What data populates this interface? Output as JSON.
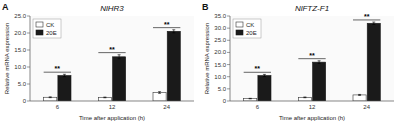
{
  "chart_data": [
    {
      "type": "bar",
      "label": "A",
      "title": "NlHR3",
      "xlabel": "Time after application (h)",
      "ylabel": "Relative mRNA expression",
      "categories": [
        "6",
        "12",
        "24"
      ],
      "series": [
        {
          "name": "CK",
          "color": "white",
          "values": [
            1.1,
            1.05,
            2.5
          ],
          "errors": [
            0.12,
            0.1,
            0.25
          ]
        },
        {
          "name": "20E",
          "color": "#1a1a1a",
          "values": [
            7.5,
            13.0,
            20.5
          ],
          "errors": [
            0.35,
            0.6,
            0.45
          ]
        }
      ],
      "annotations": [
        "**",
        "**",
        "**"
      ],
      "ylim": [
        0,
        25
      ],
      "yticks": [
        0,
        {
          "value": 5.0,
          "label": "5.0"
        },
        {
          "value": 10.0,
          "label": "10.0"
        },
        {
          "value": 15.0,
          "label": "15.0"
        },
        {
          "value": 20.0,
          "label": "20.0"
        },
        {
          "value": 25.0,
          "label": "25.0"
        }
      ],
      "legend": "upper left"
    },
    {
      "type": "bar",
      "label": "B",
      "title": "NlFTZ-F1",
      "xlabel": "Time after application (h)",
      "ylabel": "Relative mRNA expression",
      "categories": [
        "6",
        "12",
        "24"
      ],
      "series": [
        {
          "name": "CK",
          "color": "white",
          "values": [
            1.0,
            1.5,
            2.5
          ],
          "errors": [
            0.1,
            0.15,
            0.2
          ]
        },
        {
          "name": "20E",
          "color": "#1a1a1a",
          "values": [
            10.5,
            16.0,
            32.0
          ],
          "errors": [
            0.45,
            0.55,
            0.5
          ]
        }
      ],
      "annotations": [
        "**",
        "**",
        "**"
      ],
      "ylim": [
        0,
        35
      ],
      "yticks": [
        0,
        {
          "value": 5.0,
          "label": "5.0"
        },
        {
          "value": 10.0,
          "label": "10.0"
        },
        {
          "value": 15.0,
          "label": "15.0"
        },
        {
          "value": 20.0,
          "label": "20.0"
        },
        {
          "value": 25.0,
          "label": "25.0"
        },
        {
          "value": 30.0,
          "label": "30.0"
        },
        {
          "value": 35.0,
          "label": "35.0"
        }
      ],
      "legend": "upper left"
    }
  ]
}
